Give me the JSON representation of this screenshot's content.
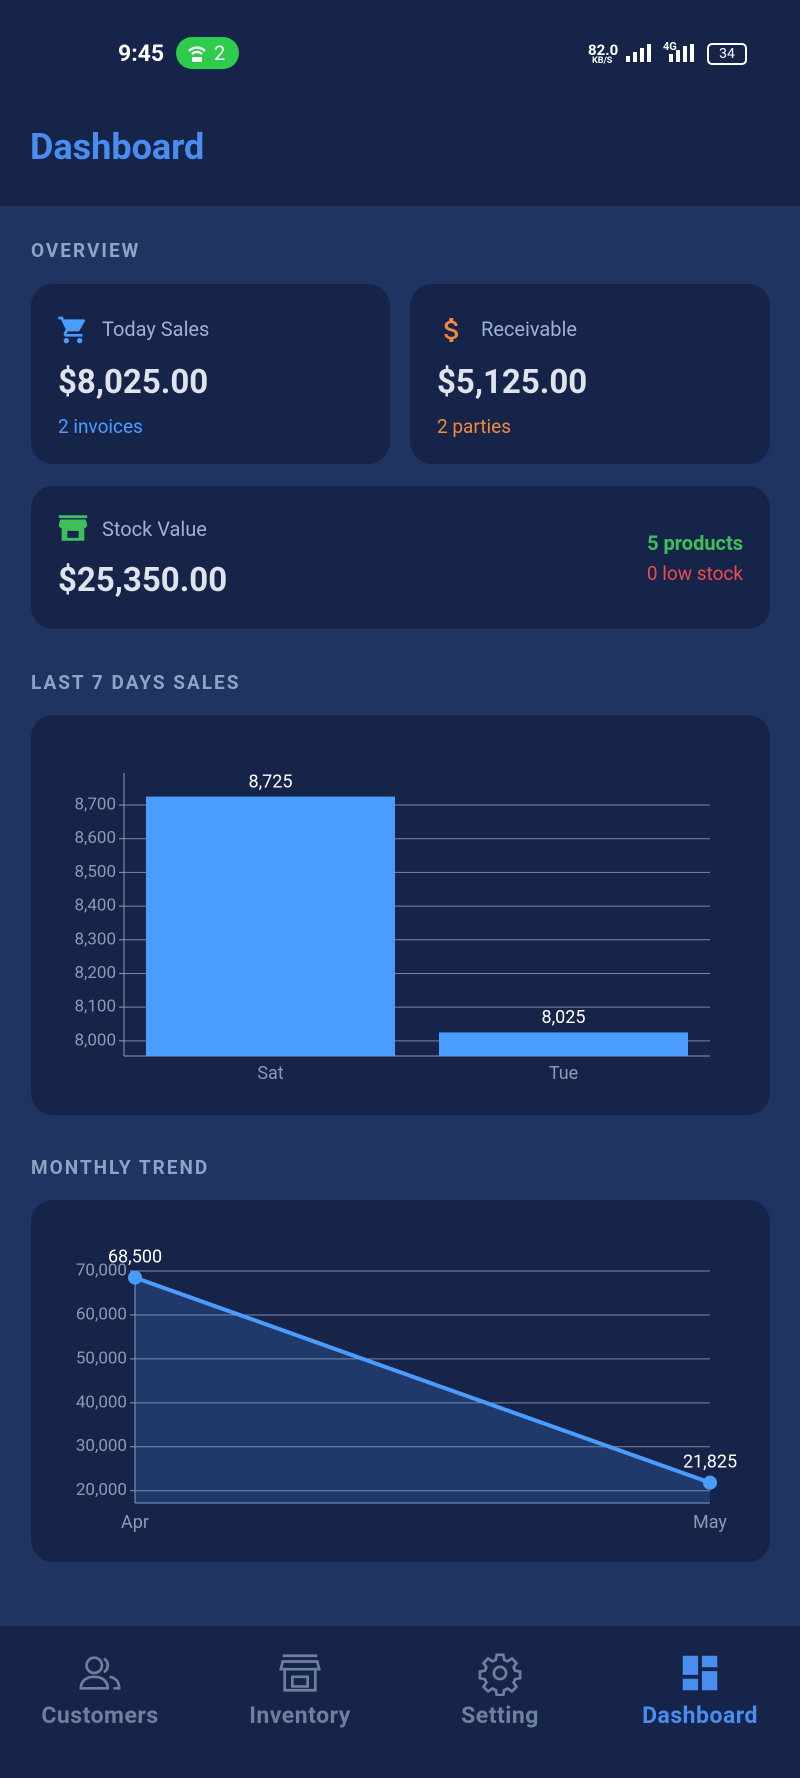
{
  "status_bar": {
    "time": "9:45",
    "hotspot": "2",
    "speed": "82.0",
    "speed_unit": "KB/S",
    "network": "4G",
    "battery": "34"
  },
  "header": {
    "title": "Dashboard"
  },
  "overview": {
    "title": "OVERVIEW",
    "today_sales": {
      "label": "Today Sales",
      "value": "$8,025.00",
      "sub": "2 invoices"
    },
    "receivable": {
      "label": "Receivable",
      "value": "$5,125.00",
      "sub": "2 parties"
    },
    "stock": {
      "label": "Stock Value",
      "value": "$25,350.00",
      "products": "5 products",
      "low_stock": "0 low stock"
    }
  },
  "sections": {
    "sales": "LAST 7 DAYS SALES",
    "trend": "MONTHLY TREND"
  },
  "chart_data": [
    {
      "type": "bar",
      "categories": [
        "Sat",
        "Tue"
      ],
      "values": [
        8725,
        8025
      ],
      "value_labels": [
        "8,725",
        "8,025"
      ],
      "color": "#4a9dff",
      "ylim": [
        7955,
        8795
      ],
      "grid": true,
      "yticks": [
        {
          "value": 8000,
          "label": "8,000"
        },
        {
          "value": 8100,
          "label": "8,100"
        },
        {
          "value": 8200,
          "label": "8,200"
        },
        {
          "value": 8300,
          "label": "8,300"
        },
        {
          "value": 8400,
          "label": "8,400"
        },
        {
          "value": 8500,
          "label": "8,500"
        },
        {
          "value": 8600,
          "label": "8,600"
        },
        {
          "value": 8700,
          "label": "8,700"
        }
      ]
    },
    {
      "type": "line",
      "categories": [
        "Apr",
        "May"
      ],
      "values": [
        68500,
        21825
      ],
      "value_labels": [
        "68,500",
        "21,825"
      ],
      "color": "#4a9dff",
      "ylim": [
        17200,
        70000
      ],
      "grid": true,
      "yticks": [
        {
          "value": 20000,
          "label": "20,000"
        },
        {
          "value": 30000,
          "label": "30,000"
        },
        {
          "value": 40000,
          "label": "40,000"
        },
        {
          "value": 50000,
          "label": "50,000"
        },
        {
          "value": 60000,
          "label": "60,000"
        },
        {
          "value": 70000,
          "label": "70,000"
        }
      ]
    }
  ],
  "nav": {
    "items": [
      "Customers",
      "Inventory",
      "Setting",
      "Dashboard"
    ]
  }
}
